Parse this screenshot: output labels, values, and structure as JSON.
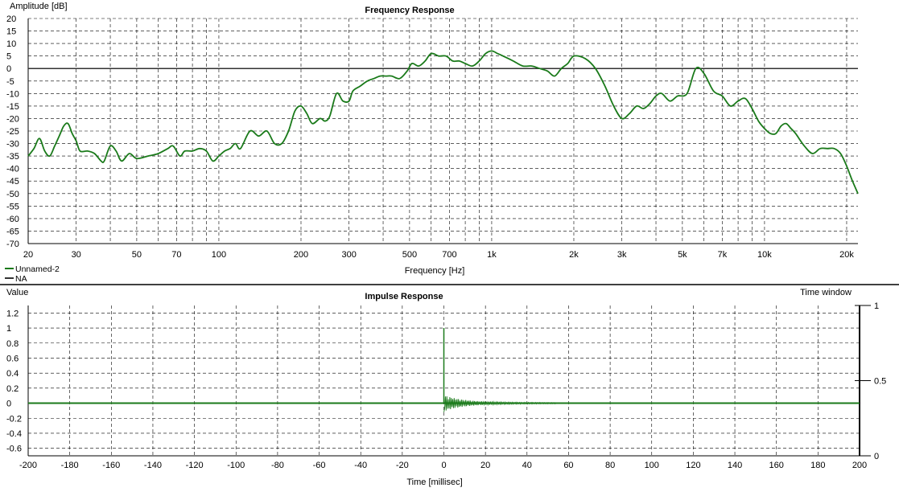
{
  "colors": {
    "trace": "#1a7a1a",
    "zero_line": "#333333",
    "grid": "#000000"
  },
  "chart_data": [
    {
      "id": "frequency",
      "type": "line",
      "title": "Frequency Response",
      "xlabel": "Frequency [Hz]",
      "ylabel": "Amplitude [dB]",
      "xscale": "log",
      "xlim": [
        20,
        22000
      ],
      "ylim": [
        -70,
        20
      ],
      "grid": true,
      "x_ticks": [
        {
          "v": 20,
          "label": "20"
        },
        {
          "v": 30,
          "label": "30"
        },
        {
          "v": 50,
          "label": "50"
        },
        {
          "v": 70,
          "label": "70"
        },
        {
          "v": 100,
          "label": "100"
        },
        {
          "v": 200,
          "label": "200"
        },
        {
          "v": 300,
          "label": "300"
        },
        {
          "v": 500,
          "label": "500"
        },
        {
          "v": 700,
          "label": "700"
        },
        {
          "v": 1000,
          "label": "1k"
        },
        {
          "v": 2000,
          "label": "2k"
        },
        {
          "v": 3000,
          "label": "3k"
        },
        {
          "v": 5000,
          "label": "5k"
        },
        {
          "v": 7000,
          "label": "7k"
        },
        {
          "v": 10000,
          "label": "10k"
        },
        {
          "v": 20000,
          "label": "20k"
        }
      ],
      "x_minor_grid": [
        40,
        60,
        80,
        90,
        400,
        600,
        800,
        900,
        4000,
        6000,
        8000,
        9000
      ],
      "y_ticks": [
        20,
        15,
        10,
        5,
        0,
        -5,
        -10,
        -15,
        -20,
        -25,
        -30,
        -35,
        -40,
        -45,
        -50,
        -55,
        -60,
        -65,
        -70
      ],
      "legend": {
        "placement": "bottom-left",
        "entries": [
          {
            "label": "Unnamed-2",
            "color": "#1a7a1a"
          },
          {
            "label": "NA",
            "color": "#333333"
          }
        ]
      },
      "reference_line": 0,
      "series": [
        {
          "name": "Unnamed-2",
          "points": [
            [
              20,
              -35
            ],
            [
              21,
              -32
            ],
            [
              22,
              -28
            ],
            [
              23,
              -33
            ],
            [
              24,
              -35
            ],
            [
              25,
              -31
            ],
            [
              26,
              -27
            ],
            [
              27,
              -23
            ],
            [
              28,
              -22
            ],
            [
              29,
              -26
            ],
            [
              30,
              -29
            ],
            [
              31,
              -33
            ],
            [
              33,
              -33
            ],
            [
              35,
              -34
            ],
            [
              37,
              -37
            ],
            [
              38,
              -37
            ],
            [
              40,
              -31
            ],
            [
              42,
              -33
            ],
            [
              44,
              -37
            ],
            [
              47,
              -34
            ],
            [
              50,
              -36
            ],
            [
              55,
              -35
            ],
            [
              60,
              -34
            ],
            [
              65,
              -32
            ],
            [
              68,
              -31
            ],
            [
              72,
              -35
            ],
            [
              75,
              -33
            ],
            [
              80,
              -33
            ],
            [
              85,
              -32
            ],
            [
              90,
              -33
            ],
            [
              95,
              -37
            ],
            [
              100,
              -35
            ],
            [
              105,
              -33
            ],
            [
              110,
              -32
            ],
            [
              115,
              -30
            ],
            [
              120,
              -32
            ],
            [
              130,
              -25
            ],
            [
              140,
              -27
            ],
            [
              150,
              -25
            ],
            [
              160,
              -30
            ],
            [
              170,
              -30
            ],
            [
              180,
              -25
            ],
            [
              190,
              -17
            ],
            [
              200,
              -15
            ],
            [
              210,
              -18
            ],
            [
              220,
              -22
            ],
            [
              235,
              -20
            ],
            [
              245,
              -21
            ],
            [
              255,
              -19
            ],
            [
              270,
              -10
            ],
            [
              285,
              -13
            ],
            [
              300,
              -13
            ],
            [
              310,
              -9
            ],
            [
              330,
              -7
            ],
            [
              350,
              -5
            ],
            [
              370,
              -4
            ],
            [
              390,
              -3
            ],
            [
              410,
              -3
            ],
            [
              430,
              -3
            ],
            [
              460,
              -4
            ],
            [
              490,
              -1
            ],
            [
              510,
              2
            ],
            [
              540,
              1
            ],
            [
              570,
              3
            ],
            [
              600,
              6
            ],
            [
              640,
              5
            ],
            [
              680,
              5
            ],
            [
              720,
              3
            ],
            [
              760,
              3
            ],
            [
              800,
              2
            ],
            [
              850,
              1
            ],
            [
              900,
              3
            ],
            [
              950,
              6
            ],
            [
              1000,
              7
            ],
            [
              1050,
              6
            ],
            [
              1100,
              5
            ],
            [
              1200,
              3
            ],
            [
              1300,
              1
            ],
            [
              1400,
              1
            ],
            [
              1500,
              0
            ],
            [
              1600,
              -1
            ],
            [
              1700,
              -3
            ],
            [
              1800,
              0
            ],
            [
              1900,
              2
            ],
            [
              2000,
              5
            ],
            [
              2200,
              4
            ],
            [
              2400,
              0
            ],
            [
              2600,
              -7
            ],
            [
              2800,
              -15
            ],
            [
              3000,
              -20
            ],
            [
              3200,
              -18
            ],
            [
              3400,
              -15
            ],
            [
              3600,
              -16
            ],
            [
              3800,
              -14
            ],
            [
              4000,
              -11
            ],
            [
              4200,
              -10
            ],
            [
              4500,
              -13
            ],
            [
              4800,
              -11
            ],
            [
              5200,
              -10
            ],
            [
              5600,
              0
            ],
            [
              6000,
              -2
            ],
            [
              6500,
              -9
            ],
            [
              7000,
              -11
            ],
            [
              7500,
              -15
            ],
            [
              8000,
              -13
            ],
            [
              8500,
              -12
            ],
            [
              9000,
              -16
            ],
            [
              9500,
              -21
            ],
            [
              10000,
              -24
            ],
            [
              10500,
              -26
            ],
            [
              11000,
              -26
            ],
            [
              11500,
              -23
            ],
            [
              12000,
              -22
            ],
            [
              12500,
              -24
            ],
            [
              13000,
              -26
            ],
            [
              14000,
              -31
            ],
            [
              15000,
              -34
            ],
            [
              16000,
              -32
            ],
            [
              17000,
              -32
            ],
            [
              18000,
              -32
            ],
            [
              19000,
              -34
            ],
            [
              20000,
              -39
            ],
            [
              21000,
              -45
            ],
            [
              22000,
              -50
            ]
          ]
        }
      ]
    },
    {
      "id": "impulse",
      "type": "line",
      "title": "Impulse Response",
      "xlabel": "Time [millisec]",
      "ylabel": "Value",
      "xlim": [
        -200,
        200
      ],
      "ylim": [
        -0.7,
        1.3
      ],
      "grid": true,
      "x_ticks": [
        -200,
        -180,
        -160,
        -140,
        -120,
        -100,
        -80,
        -60,
        -40,
        -20,
        0,
        20,
        40,
        60,
        80,
        100,
        120,
        140,
        160,
        180,
        200
      ],
      "y_ticks": [
        1.2,
        1,
        0.8,
        0.6,
        0.4,
        0.2,
        0,
        -0.2,
        -0.4,
        -0.6
      ],
      "secondary_axis": {
        "label": "Time window",
        "ylim": [
          0,
          1
        ],
        "ticks": [
          1,
          0.5,
          0
        ]
      },
      "series": [
        {
          "name": "impulse",
          "peak": {
            "x": 0,
            "y": 1.0
          },
          "decay_until_ms": 54,
          "baseline": 0
        }
      ]
    }
  ]
}
